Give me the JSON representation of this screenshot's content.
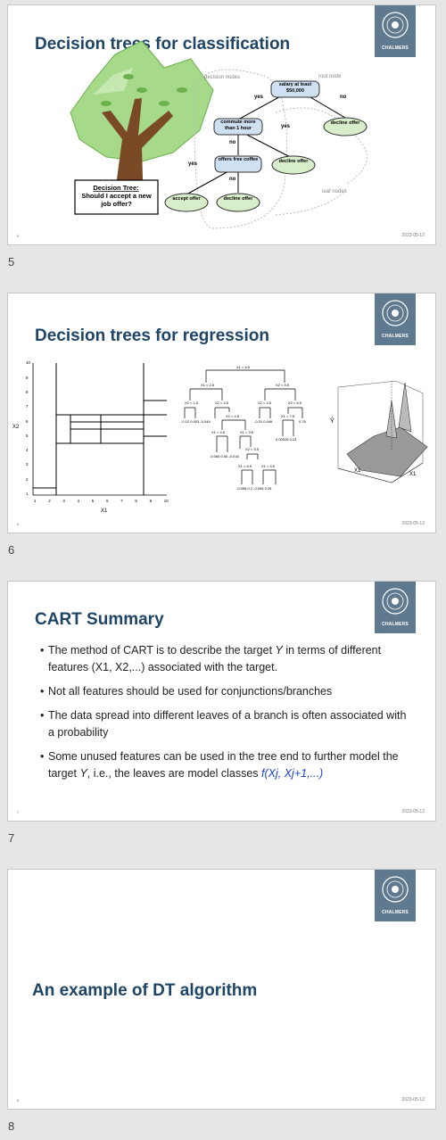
{
  "slides": [
    {
      "number_label": "5",
      "title": "Decision trees for classification",
      "footer_num": "5",
      "footer_date": "2023-05-12",
      "logo_text": "CHALMERS",
      "diagram": {
        "caption_title": "Decision Tree:",
        "caption_body": "Should I accept a new job offer?",
        "label_decision_nodes": "decision nodes",
        "label_root_node": "root node",
        "label_leaf_nodes": "leaf nodes",
        "node_salary": "salary at least $50,000",
        "node_commute": "commute more than 1 hour",
        "node_coffee": "offers free coffee",
        "leaf_decline_1": "decline offer",
        "leaf_decline_2": "decline offer",
        "leaf_decline_3": "decline offer",
        "leaf_accept": "accept offer",
        "edge_yes": "yes",
        "edge_no": "no"
      }
    },
    {
      "number_label": "6",
      "title": "Decision trees for regression",
      "footer_num": "6",
      "footer_date": "2023-05-12",
      "logo_text": "CHALMERS",
      "plot": {
        "xlabel": "X1",
        "ylabel": "X2",
        "xticks": [
          "1",
          "2",
          "3",
          "4",
          "5",
          "6",
          "7",
          "8",
          "9",
          "10"
        ],
        "yticks": [
          "1",
          "2",
          "3",
          "4",
          "5",
          "6",
          "7",
          "8",
          "9",
          "10"
        ]
      },
      "tree": {
        "root": "X1 < 8.5",
        "l1": [
          "X1 < 2.5",
          "X2 < 5.5"
        ],
        "l2": [
          "X2 < 1.5",
          "X2 < 4.5",
          "X2 < 4.5",
          "X2 < 6.5"
        ],
        "l3": [
          "X2 < 4.5",
          "X1 < 7.5"
        ],
        "l4": [
          "X1 < 4.5",
          "X1 < 3.5"
        ],
        "l5": [
          "X2 < 5.5"
        ],
        "l6": [
          "X1 < 6.5",
          "X1 < 5.5"
        ],
        "leaves_a": "-0.12  0.003  -0.044",
        "leaves_b": "-0.31  0.046",
        "leaves_c": "0.76",
        "leaves_d": "0.00026  0.23",
        "leaves_e": "-0.065  0.06  -0.016",
        "leaves_f": "-0.096  0.2  -0.095  0.26"
      },
      "surface": {
        "xlabel": "X1",
        "ylabel": "X1",
        "zlabel": "Ŷ"
      }
    },
    {
      "number_label": "7",
      "title": "CART Summary",
      "footer_num": "7",
      "footer_date": "2023-05-12",
      "logo_text": "CHALMERS",
      "bullets": [
        {
          "pre": "The method of CART is to describe the target ",
          "var": "Y",
          "post": " in terms of different features (X1, X2,...) associated with the target."
        },
        {
          "text": "Not all features should be used for conjunctions/branches"
        },
        {
          "text": "The data spread into different leaves of a branch is often associated with a probability"
        },
        {
          "pre": "Some unused features can be used in the tree end to further model the target ",
          "var": "Y",
          "post": ", i.e., the leaves are model classes ",
          "formula": "f(Xj, Xj+1,...)"
        }
      ]
    },
    {
      "number_label": "8",
      "title": "An example of DT algorithm",
      "footer_num": "8",
      "footer_date": "2023-05-12",
      "logo_text": "CHALMERS"
    }
  ],
  "colors": {
    "title": "#1e4466",
    "logo_bg": "#5f7a8f",
    "node_blue": "#cfe0f3",
    "leaf_green": "#d8edc9",
    "tree_green": "#a6d98a",
    "trunk": "#7a4a26",
    "formula_blue": "#1a3fd6"
  }
}
